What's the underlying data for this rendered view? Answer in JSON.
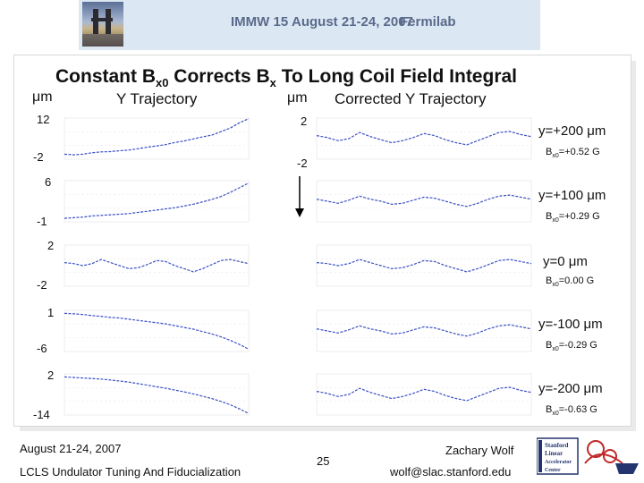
{
  "header": {
    "conference": "IMMW 15",
    "dates": "August 21-24, 2007",
    "location": "Fermilab"
  },
  "title": {
    "prefix": "Constant B",
    "sub1": "x0",
    "middle": " Corrects B",
    "sub2": "x",
    "suffix": " To Long Coil Field Integral"
  },
  "columns": {
    "left_unit": "μm",
    "left_heading": "Y Trajectory",
    "right_unit": "μm",
    "right_heading": "Corrected Y Trajectory"
  },
  "chart_data": [
    {
      "type": "line",
      "panel": "Y Trajectory, y=+200 μm",
      "ylim": [
        -2,
        12
      ],
      "tick_labels": [
        "12",
        "-2"
      ],
      "x": [
        0,
        1,
        2,
        3,
        4,
        5,
        6,
        7,
        8,
        9,
        10,
        11,
        12,
        13,
        14,
        15,
        16,
        17,
        18,
        19,
        20
      ],
      "values": [
        -0.3,
        -0.5,
        -0.3,
        0.2,
        0.5,
        0.6,
        0.9,
        1.1,
        1.6,
        2.1,
        2.5,
        3.0,
        3.7,
        4.2,
        4.9,
        5.6,
        6.2,
        7.4,
        8.6,
        10.4,
        11.8
      ]
    },
    {
      "type": "line",
      "panel": "Corrected Y Trajectory, y=+200 μm",
      "ylim": [
        -2,
        2
      ],
      "tick_labels": [
        "2",
        "-2"
      ],
      "x": [
        0,
        1,
        2,
        3,
        4,
        5,
        6,
        7,
        8,
        9,
        10,
        11,
        12,
        13,
        14,
        15,
        16,
        17,
        18,
        19,
        20
      ],
      "values": [
        0.3,
        0.1,
        -0.2,
        0.0,
        0.6,
        0.2,
        -0.1,
        -0.4,
        -0.2,
        0.1,
        0.5,
        0.3,
        -0.1,
        -0.4,
        -0.6,
        -0.2,
        0.2,
        0.6,
        0.7,
        0.4,
        0.2
      ]
    },
    {
      "type": "line",
      "panel": "Y Trajectory, y=+100 μm",
      "ylim": [
        -1,
        6
      ],
      "tick_labels": [
        "6",
        "-1"
      ],
      "x": [
        0,
        1,
        2,
        3,
        4,
        5,
        6,
        7,
        8,
        9,
        10,
        11,
        12,
        13,
        14,
        15,
        16,
        17,
        18,
        19,
        20
      ],
      "values": [
        -0.4,
        -0.3,
        -0.2,
        0.0,
        0.1,
        0.2,
        0.3,
        0.4,
        0.6,
        0.8,
        1.0,
        1.2,
        1.4,
        1.7,
        2.0,
        2.4,
        2.8,
        3.3,
        4.0,
        4.8,
        5.6
      ]
    },
    {
      "type": "line",
      "panel": "Corrected Y Trajectory, y=+100 μm",
      "ylim": [
        -2,
        2
      ],
      "x": [
        0,
        1,
        2,
        3,
        4,
        5,
        6,
        7,
        8,
        9,
        10,
        11,
        12,
        13,
        14,
        15,
        16,
        17,
        18,
        19,
        20
      ],
      "values": [
        0.2,
        0.0,
        -0.2,
        0.1,
        0.5,
        0.2,
        0.0,
        -0.3,
        -0.2,
        0.1,
        0.4,
        0.3,
        0.0,
        -0.3,
        -0.5,
        -0.2,
        0.2,
        0.5,
        0.6,
        0.4,
        0.2
      ]
    },
    {
      "type": "line",
      "panel": "Y Trajectory, y=0 μm",
      "ylim": [
        -2,
        2
      ],
      "tick_labels": [
        "2",
        "-2"
      ],
      "x": [
        0,
        1,
        2,
        3,
        4,
        5,
        6,
        7,
        8,
        9,
        10,
        11,
        12,
        13,
        14,
        15,
        16,
        17,
        18,
        19,
        20
      ],
      "values": [
        0.3,
        0.2,
        0.0,
        0.2,
        0.6,
        0.3,
        0.0,
        -0.3,
        -0.2,
        0.1,
        0.5,
        0.4,
        0.0,
        -0.3,
        -0.6,
        -0.3,
        0.1,
        0.5,
        0.6,
        0.4,
        0.2
      ]
    },
    {
      "type": "line",
      "panel": "Corrected Y Trajectory, y=0 μm",
      "ylim": [
        -2,
        2
      ],
      "x": [
        0,
        1,
        2,
        3,
        4,
        5,
        6,
        7,
        8,
        9,
        10,
        11,
        12,
        13,
        14,
        15,
        16,
        17,
        18,
        19,
        20
      ],
      "values": [
        0.3,
        0.2,
        0.0,
        0.2,
        0.6,
        0.3,
        0.0,
        -0.3,
        -0.2,
        0.1,
        0.5,
        0.4,
        0.0,
        -0.3,
        -0.6,
        -0.3,
        0.1,
        0.5,
        0.6,
        0.4,
        0.2
      ]
    },
    {
      "type": "line",
      "panel": "Y Trajectory, y=-100 μm",
      "ylim": [
        -6,
        1
      ],
      "tick_labels": [
        "1",
        "-6"
      ],
      "x": [
        0,
        1,
        2,
        3,
        4,
        5,
        6,
        7,
        8,
        9,
        10,
        11,
        12,
        13,
        14,
        15,
        16,
        17,
        18,
        19,
        20
      ],
      "values": [
        0.5,
        0.4,
        0.3,
        0.1,
        0.0,
        -0.2,
        -0.3,
        -0.5,
        -0.7,
        -0.9,
        -1.1,
        -1.3,
        -1.6,
        -1.9,
        -2.2,
        -2.6,
        -3.0,
        -3.5,
        -4.1,
        -4.8,
        -5.6
      ]
    },
    {
      "type": "line",
      "panel": "Corrected Y Trajectory, y=-100 μm",
      "ylim": [
        -2,
        2
      ],
      "x": [
        0,
        1,
        2,
        3,
        4,
        5,
        6,
        7,
        8,
        9,
        10,
        11,
        12,
        13,
        14,
        15,
        16,
        17,
        18,
        19,
        20
      ],
      "values": [
        0.2,
        0.0,
        -0.2,
        0.1,
        0.5,
        0.2,
        0.0,
        -0.3,
        -0.2,
        0.1,
        0.4,
        0.3,
        0.0,
        -0.3,
        -0.5,
        -0.2,
        0.2,
        0.5,
        0.6,
        0.4,
        0.2
      ]
    },
    {
      "type": "line",
      "panel": "Y Trajectory, y=-200 μm",
      "ylim": [
        -14,
        2
      ],
      "tick_labels": [
        "2",
        "-14"
      ],
      "x": [
        0,
        1,
        2,
        3,
        4,
        5,
        6,
        7,
        8,
        9,
        10,
        11,
        12,
        13,
        14,
        15,
        16,
        17,
        18,
        19,
        20
      ],
      "values": [
        0.8,
        0.6,
        0.4,
        0.2,
        0.0,
        -0.4,
        -0.8,
        -1.2,
        -1.8,
        -2.4,
        -3.0,
        -3.6,
        -4.3,
        -5.0,
        -5.8,
        -6.7,
        -7.6,
        -8.7,
        -10.0,
        -11.6,
        -13.4
      ]
    },
    {
      "type": "line",
      "panel": "Corrected Y Trajectory, y=-200 μm",
      "ylim": [
        -2,
        2
      ],
      "x": [
        0,
        1,
        2,
        3,
        4,
        5,
        6,
        7,
        8,
        9,
        10,
        11,
        12,
        13,
        14,
        15,
        16,
        17,
        18,
        19,
        20
      ],
      "values": [
        0.3,
        0.1,
        -0.2,
        0.0,
        0.6,
        0.2,
        -0.1,
        -0.4,
        -0.2,
        0.1,
        0.5,
        0.3,
        -0.1,
        -0.4,
        -0.6,
        -0.2,
        0.2,
        0.6,
        0.7,
        0.4,
        0.2
      ]
    }
  ],
  "annotations": [
    {
      "y_label": "y=+200 μm",
      "b_prefix": "B",
      "b_sub": "x0",
      "b_value": "=+0.52 G"
    },
    {
      "y_label": "y=+100 μm",
      "b_prefix": "B",
      "b_sub": "x0",
      "b_value": "=+0.29 G"
    },
    {
      "y_label": "y=0 μm",
      "b_prefix": "B",
      "b_sub": "x0",
      "b_value": "=0.00 G"
    },
    {
      "y_label": "y=-100 μm",
      "b_prefix": "B",
      "b_sub": "x0",
      "b_value": "=-0.29 G"
    },
    {
      "y_label": "y=-200 μm",
      "b_prefix": "B",
      "b_sub": "x0",
      "b_value": "=-0.63 G"
    }
  ],
  "footer": {
    "date": "August 21-24, 2007",
    "subtitle": "LCLS Undulator Tuning And Fiducialization",
    "page_number": "25",
    "author": "Zachary Wolf",
    "email": "wolf@slac.stanford.edu",
    "logo_text": [
      "Stanford",
      "Linear",
      "Accelerator",
      "Center"
    ]
  },
  "colors": {
    "trace": "#3a4fc0",
    "banner": "#dce7f4",
    "banner_text": "#5a6a8a"
  }
}
